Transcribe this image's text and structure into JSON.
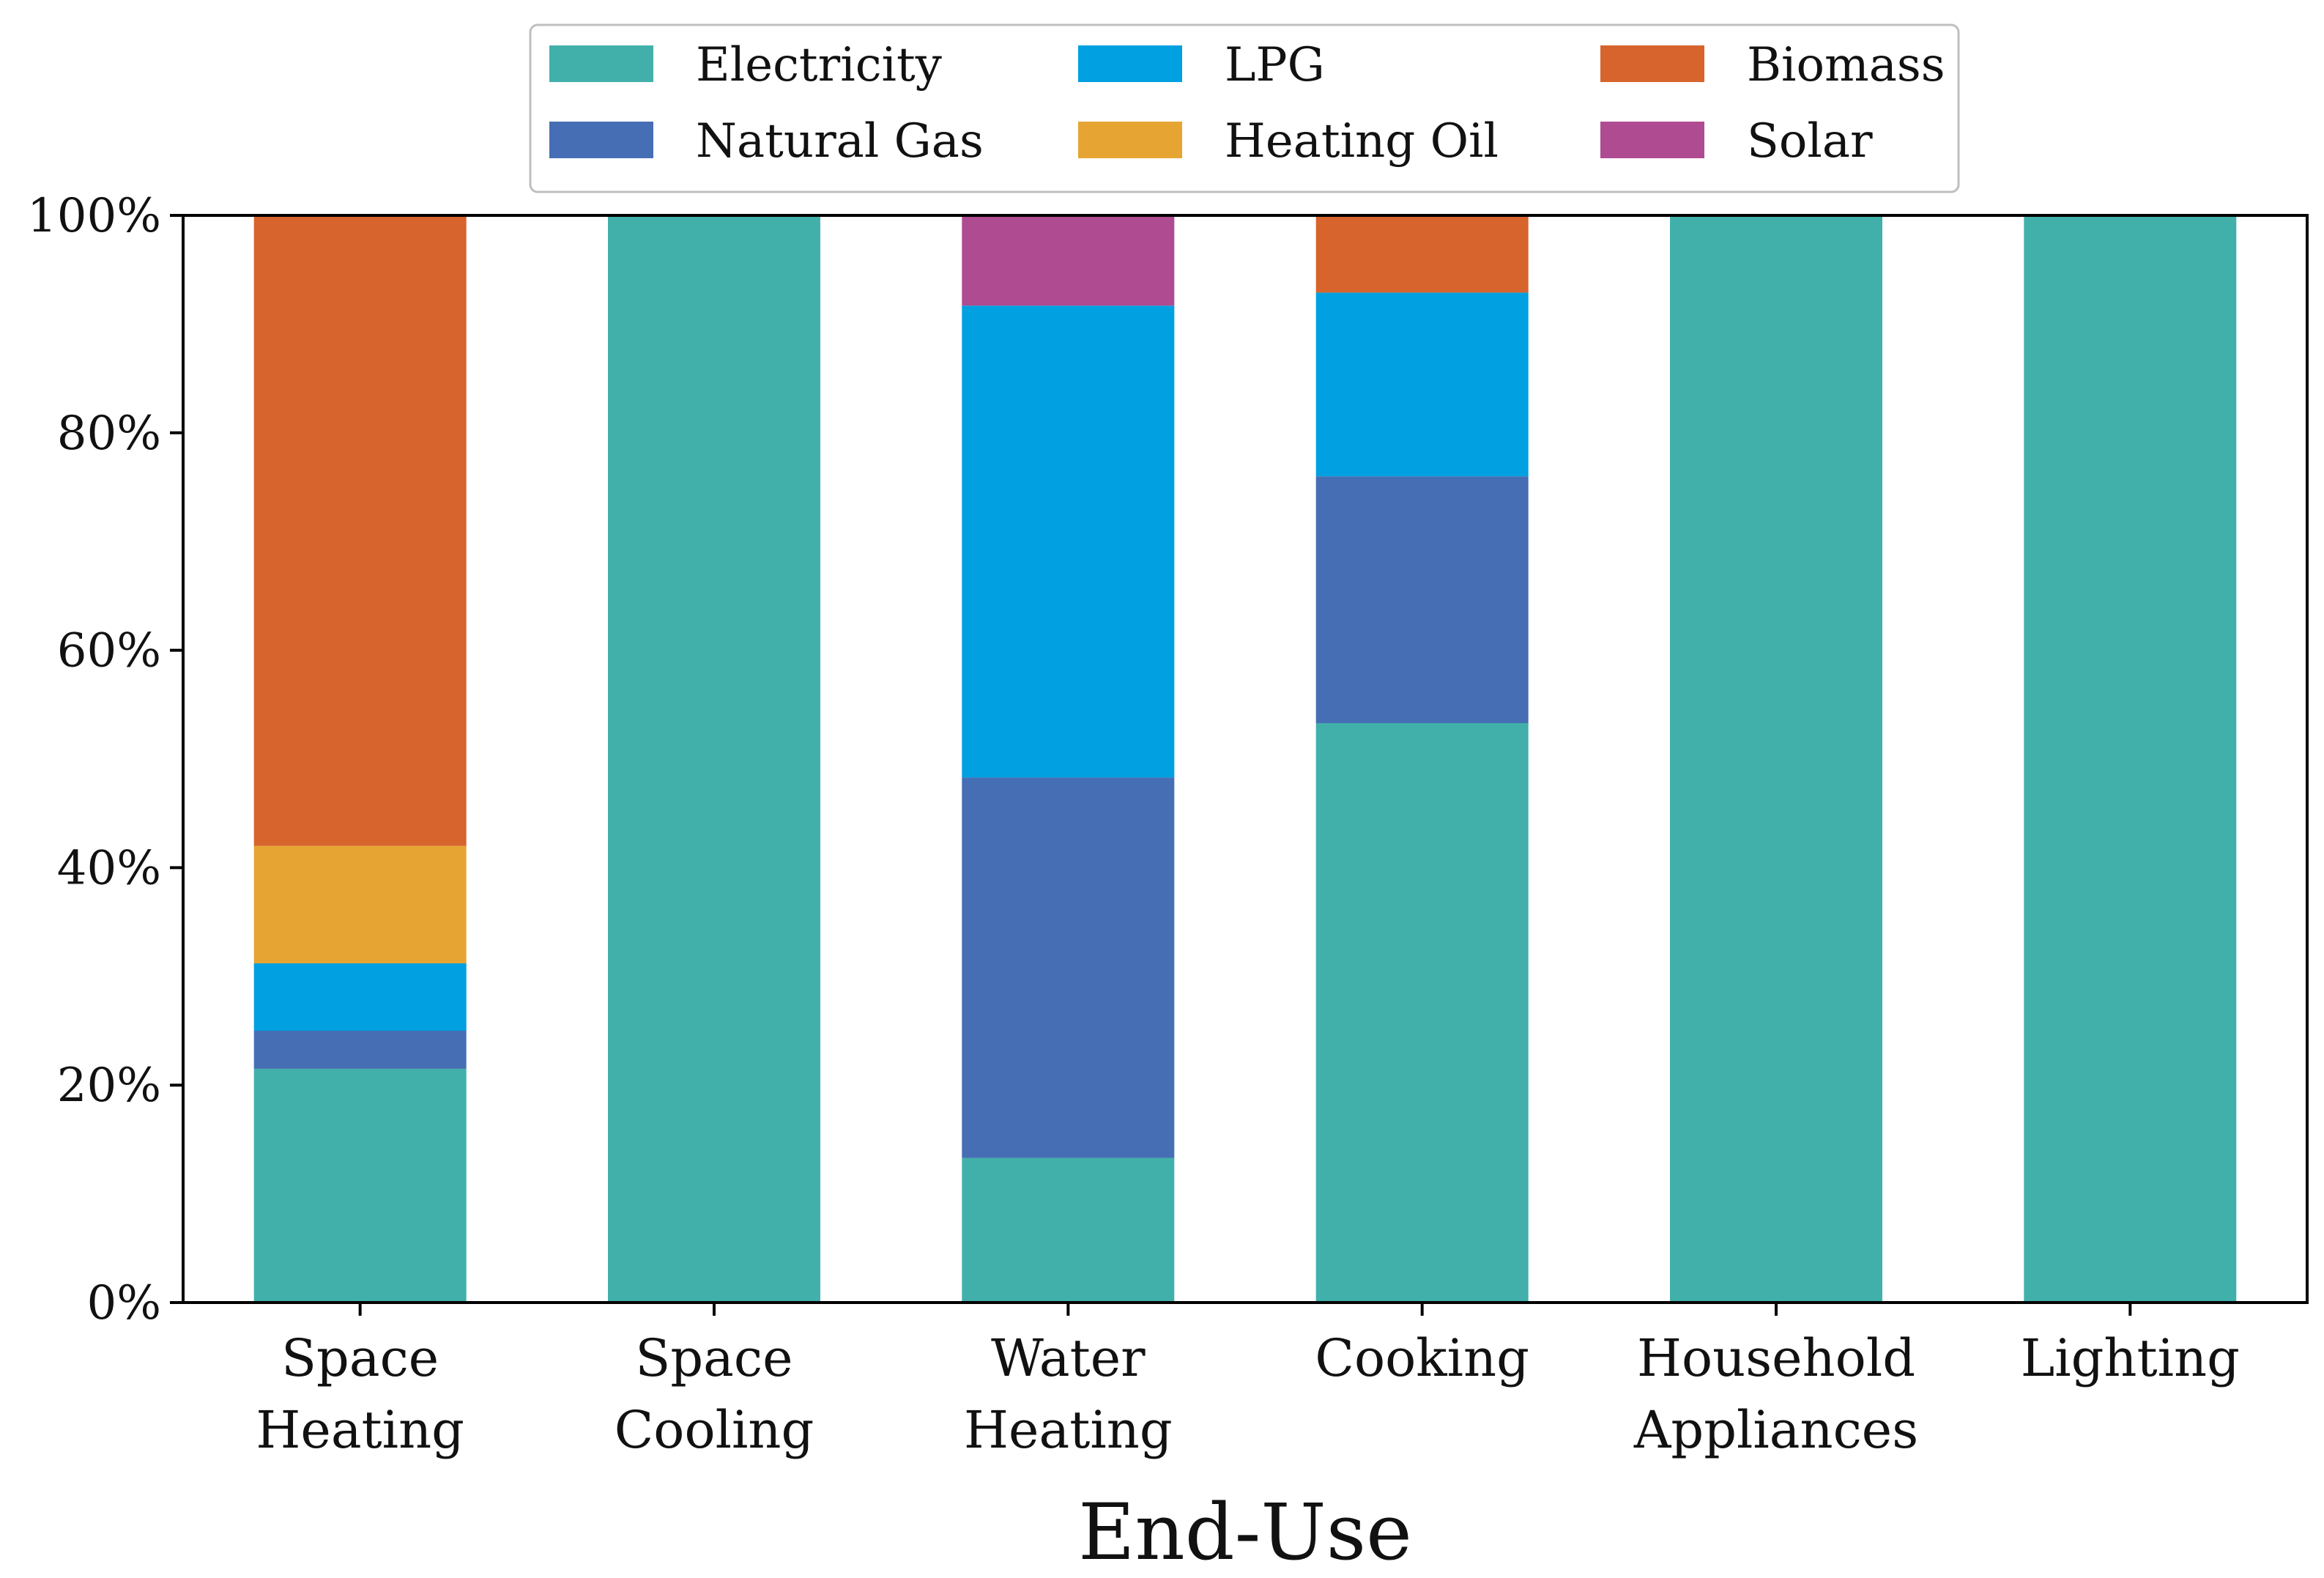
{
  "chart_data": {
    "type": "bar",
    "stacked": true,
    "title": "",
    "xlabel": "End-Use",
    "ylabel": "",
    "ylim": [
      0,
      100
    ],
    "yticks": [
      0,
      20,
      40,
      60,
      80,
      100
    ],
    "ytick_labels": [
      "0%",
      "20%",
      "40%",
      "60%",
      "80%",
      "100%"
    ],
    "grid": false,
    "legend_position": "top-center",
    "categories": [
      [
        "Space",
        "Heating"
      ],
      [
        "Space",
        "Cooling"
      ],
      [
        "Water",
        "Heating"
      ],
      [
        "Cooking"
      ],
      [
        "Household",
        "Appliances"
      ],
      [
        "Lighting"
      ]
    ],
    "series": [
      {
        "name": "Electricity",
        "color": "#42B0AA",
        "values": [
          21.5,
          100,
          13.3,
          53.3,
          100,
          100
        ]
      },
      {
        "name": "Natural Gas",
        "color": "#466EB4",
        "values": [
          3.5,
          0,
          35.0,
          22.7,
          0,
          0
        ]
      },
      {
        "name": "LPG",
        "color": "#00A0E1",
        "values": [
          6.2,
          0,
          43.4,
          16.9,
          0,
          0
        ]
      },
      {
        "name": "Heating Oil",
        "color": "#E6A532",
        "values": [
          10.8,
          0,
          0,
          0,
          0,
          0
        ]
      },
      {
        "name": "Biomass",
        "color": "#D7642D",
        "values": [
          58.0,
          0,
          0,
          7.1,
          0,
          0
        ]
      },
      {
        "name": "Solar",
        "color": "#AF4B91",
        "values": [
          0,
          0,
          8.3,
          0,
          0,
          0
        ]
      }
    ]
  }
}
